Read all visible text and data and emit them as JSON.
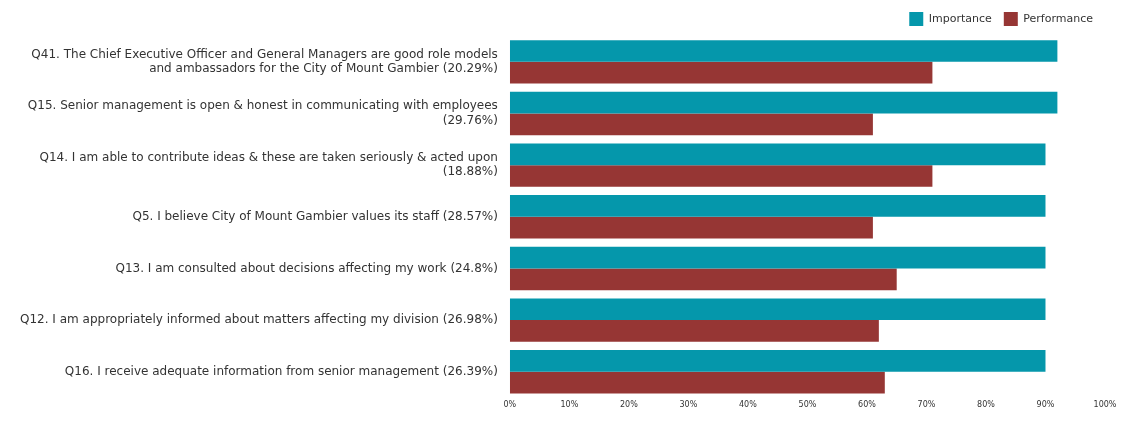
{
  "chart_data": {
    "type": "bar",
    "orientation": "horizontal",
    "categories": [
      "Q41. The Chief Executive Officer and General Managers are good role models\nand ambassadors for the City of Mount Gambier (20.29%)",
      "Q15. Senior management is open & honest in communicating with employees\n(29.76%)",
      "Q14. I am able to contribute ideas & these are taken seriously & acted upon\n(18.88%)",
      "Q5. I believe City of Mount Gambier values its staff (28.57%)",
      "Q13. I am consulted about decisions affecting my work (24.8%)",
      "Q12. I am appropriately informed about matters affecting my division (26.98%)",
      "Q16. I receive adequate information from senior management (26.39%)"
    ],
    "series": [
      {
        "name": "Importance",
        "color": "#0597ab",
        "values": [
          92,
          92,
          90,
          90,
          90,
          90,
          90
        ]
      },
      {
        "name": "Performance",
        "color": "#963634",
        "values": [
          71,
          61,
          71,
          61,
          65,
          62,
          63
        ]
      }
    ],
    "xlim": [
      0,
      100
    ],
    "xticks": [
      {
        "value": 0,
        "label": "0%"
      },
      {
        "value": 10,
        "label": "10%"
      },
      {
        "value": 20,
        "label": "20%"
      },
      {
        "value": 30,
        "label": "30%"
      },
      {
        "value": 40,
        "label": "40%"
      },
      {
        "value": 50,
        "label": "50%"
      },
      {
        "value": 60,
        "label": "60%"
      },
      {
        "value": 70,
        "label": "70%"
      },
      {
        "value": 80,
        "label": "80%"
      },
      {
        "value": 90,
        "label": "90%"
      },
      {
        "value": 100,
        "label": "100%"
      }
    ],
    "grid": false,
    "legend": "top right"
  }
}
